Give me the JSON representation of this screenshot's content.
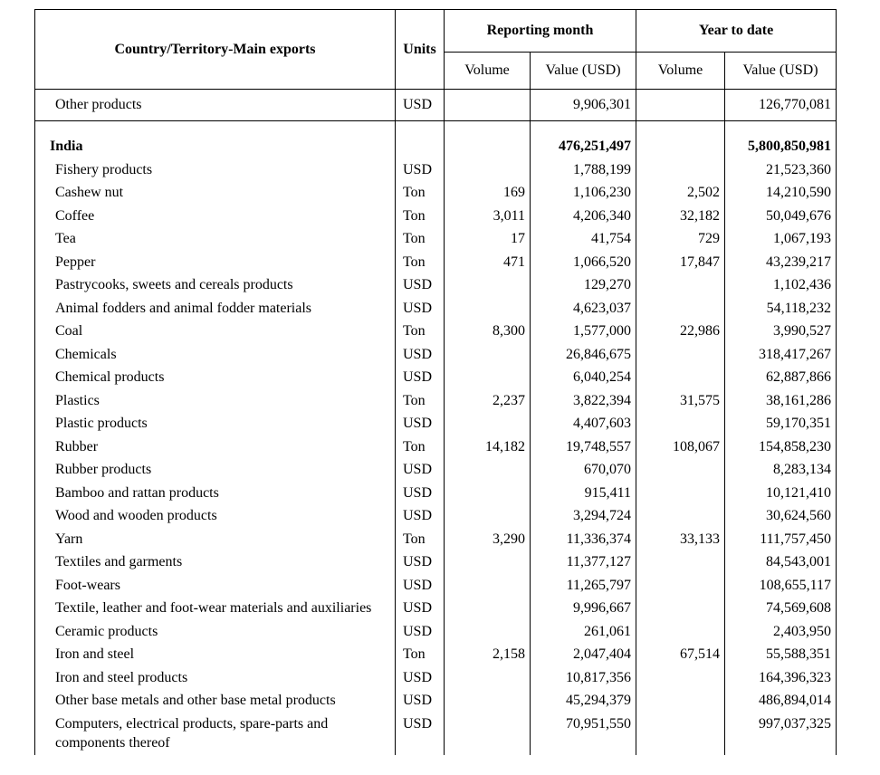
{
  "header": {
    "country": "Country/Territory-Main exports",
    "units": "Units",
    "reporting_month": "Reporting month",
    "year_to_date": "Year to date",
    "subheaders": [
      "Volume",
      "Value (USD)",
      "Volume",
      "Value (USD)"
    ]
  },
  "top_rows": [
    [
      "Other products",
      "USD",
      null,
      "9,906,301",
      null,
      "126,770,081"
    ]
  ],
  "section": {
    "name": "India",
    "units": null,
    "rm_volume": null,
    "rm_value": "476,251,497",
    "ytd_volume": null,
    "ytd_value": "5,800,850,981",
    "rows": [
      [
        "Fishery products",
        "USD",
        null,
        "1,788,199",
        null,
        "21,523,360"
      ],
      [
        "Cashew nut",
        "Ton",
        "169",
        "1,106,230",
        "2,502",
        "14,210,590"
      ],
      [
        "Coffee",
        "Ton",
        "3,011",
        "4,206,340",
        "32,182",
        "50,049,676"
      ],
      [
        "Tea",
        "Ton",
        "17",
        "41,754",
        "729",
        "1,067,193"
      ],
      [
        "Pepper",
        "Ton",
        "471",
        "1,066,520",
        "17,847",
        "43,239,217"
      ],
      [
        "Pastrycooks, sweets and cereals products",
        "USD",
        null,
        "129,270",
        null,
        "1,102,436"
      ],
      [
        "Animal fodders and animal fodder materials",
        "USD",
        null,
        "4,623,037",
        null,
        "54,118,232"
      ],
      [
        "Coal",
        "Ton",
        "8,300",
        "1,577,000",
        "22,986",
        "3,990,527"
      ],
      [
        "Chemicals",
        "USD",
        null,
        "26,846,675",
        null,
        "318,417,267"
      ],
      [
        "Chemical products",
        "USD",
        null,
        "6,040,254",
        null,
        "62,887,866"
      ],
      [
        "Plastics",
        "Ton",
        "2,237",
        "3,822,394",
        "31,575",
        "38,161,286"
      ],
      [
        "Plastic products",
        "USD",
        null,
        "4,407,603",
        null,
        "59,170,351"
      ],
      [
        "Rubber",
        "Ton",
        "14,182",
        "19,748,557",
        "108,067",
        "154,858,230"
      ],
      [
        "Rubber products",
        "USD",
        null,
        "670,070",
        null,
        "8,283,134"
      ],
      [
        "Bamboo and rattan products",
        "USD",
        null,
        "915,411",
        null,
        "10,121,410"
      ],
      [
        "Wood and wooden products",
        "USD",
        null,
        "3,294,724",
        null,
        "30,624,560"
      ],
      [
        "Yarn",
        "Ton",
        "3,290",
        "11,336,374",
        "33,133",
        "111,757,450"
      ],
      [
        "Textiles and garments",
        "USD",
        null,
        "11,377,127",
        null,
        "84,543,001"
      ],
      [
        "Foot-wears",
        "USD",
        null,
        "11,265,797",
        null,
        "108,655,117"
      ],
      [
        "Textile, leather and foot-wear materials and auxiliaries",
        "USD",
        null,
        "9,996,667",
        null,
        "74,569,608"
      ],
      [
        "Ceramic products",
        "USD",
        null,
        "261,061",
        null,
        "2,403,950"
      ],
      [
        "Iron and steel",
        "Ton",
        "2,158",
        "2,047,404",
        "67,514",
        "55,588,351"
      ],
      [
        "Iron and steel products",
        "USD",
        null,
        "10,817,356",
        null,
        "164,396,323"
      ],
      [
        "Other base metals and other base metal products",
        "USD",
        null,
        "45,294,379",
        null,
        "486,894,014"
      ],
      [
        "Computers, electrical products, spare-parts and components thereof",
        "USD",
        null,
        "70,951,550",
        null,
        "997,037,325"
      ]
    ]
  }
}
